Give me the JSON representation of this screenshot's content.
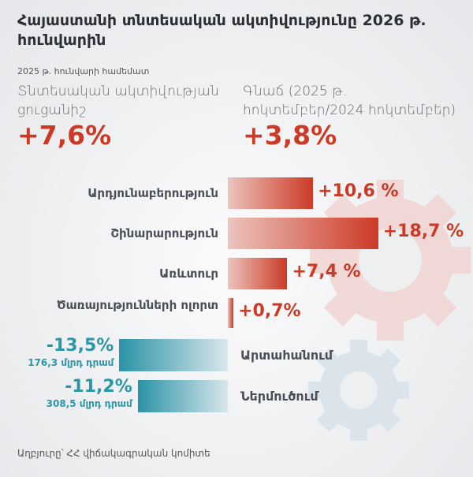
{
  "title": "Հայաստանի տնտեսական ակտիվությունը 2026 թ. հունվարին",
  "subtitle": "2025 թ. հունվարի համեմատ",
  "kpis": [
    {
      "label": "Տնտեսական ակտիվության ցուցանիշ",
      "value": "+7,6%"
    },
    {
      "label": "Գնաճ (2025 թ. հոկտեմբեր/2024 հոկտեմբեր)",
      "value": "+3,8%"
    }
  ],
  "colors": {
    "positive": "#cc3a26",
    "negative": "#2a96a6"
  },
  "chart_data": {
    "type": "bar",
    "orientation": "horizontal",
    "categories": [
      "Արդյունաբերություն",
      "Շինարարություն",
      "Առևտուր",
      "Ծառայությունների ոլորտ",
      "Արտահանում",
      "Ներմուծում"
    ],
    "values": [
      10.6,
      18.7,
      7.4,
      0.7,
      -13.5,
      -11.2
    ],
    "value_labels": [
      "+10,6 %",
      "+18,7 %",
      "+7,4 %",
      "+0,7%",
      "-13,5%",
      "-11,2%"
    ],
    "sub_labels": [
      "",
      "",
      "",
      "",
      "176,3 մլրդ դրամ",
      "308,5 մլրդ դրամ"
    ]
  },
  "source": "Աղբյուրը՝ ՀՀ վիճակագրական կոմիտե"
}
